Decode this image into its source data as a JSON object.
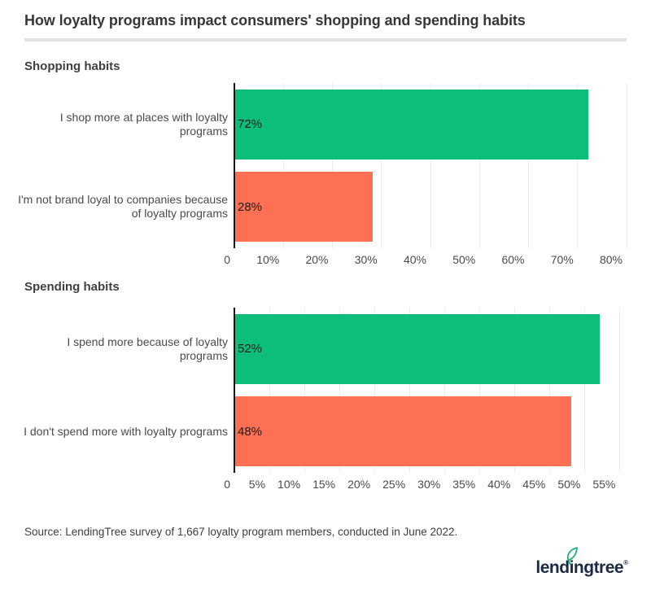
{
  "header": {
    "title": "How loyalty programs impact consumers' shopping and spending habits"
  },
  "chart_data": [
    {
      "type": "bar",
      "orientation": "horizontal",
      "title": "Shopping habits",
      "categories": [
        "I shop more at places with loyalty programs",
        "I'm not brand loyal to companies because of loyalty programs"
      ],
      "values": [
        72,
        28
      ],
      "value_labels": [
        "72%",
        "28%"
      ],
      "colors": [
        "#0dbd7a",
        "#fe7053"
      ],
      "xlim": [
        0,
        80
      ],
      "grid": true,
      "ticks": [
        {
          "value": 0,
          "label": "0"
        },
        {
          "value": 10,
          "label": "10%"
        },
        {
          "value": 20,
          "label": "20%"
        },
        {
          "value": 30,
          "label": "30%"
        },
        {
          "value": 40,
          "label": "40%"
        },
        {
          "value": 50,
          "label": "50%"
        },
        {
          "value": 60,
          "label": "60%"
        },
        {
          "value": 70,
          "label": "70%"
        },
        {
          "value": 80,
          "label": "80%"
        }
      ]
    },
    {
      "type": "bar",
      "orientation": "horizontal",
      "title": "Spending habits",
      "categories": [
        "I spend more because of loyalty programs",
        "I don't spend more with loyalty programs"
      ],
      "values": [
        52,
        48
      ],
      "value_labels": [
        "52%",
        "48%"
      ],
      "colors": [
        "#0dbd7a",
        "#fe7053"
      ],
      "xlim": [
        0,
        56
      ],
      "grid": true,
      "ticks": [
        {
          "value": 0,
          "label": "0"
        },
        {
          "value": 5,
          "label": "5%"
        },
        {
          "value": 10,
          "label": "10%"
        },
        {
          "value": 15,
          "label": "15%"
        },
        {
          "value": 20,
          "label": "20%"
        },
        {
          "value": 25,
          "label": "25%"
        },
        {
          "value": 30,
          "label": "30%"
        },
        {
          "value": 35,
          "label": "35%"
        },
        {
          "value": 40,
          "label": "40%"
        },
        {
          "value": 45,
          "label": "45%"
        },
        {
          "value": 50,
          "label": "50%"
        },
        {
          "value": 55,
          "label": "55%"
        }
      ]
    }
  ],
  "source": {
    "text": "Source: LendingTree survey of 1,667 loyalty program members, conducted in June 2022."
  },
  "logo": {
    "text": "lendingtree",
    "registered": "®"
  },
  "colors": {
    "bar_green": "#0dbd7a",
    "bar_orange": "#fe7053",
    "axis_line": "#161616",
    "gridline": "#ebebeb",
    "divider": "#e3e3e3",
    "title_text": "#373737",
    "label_text": "#4a4a4a",
    "logo_navy": "#1c2a44",
    "leaf_green": "#21b573"
  }
}
